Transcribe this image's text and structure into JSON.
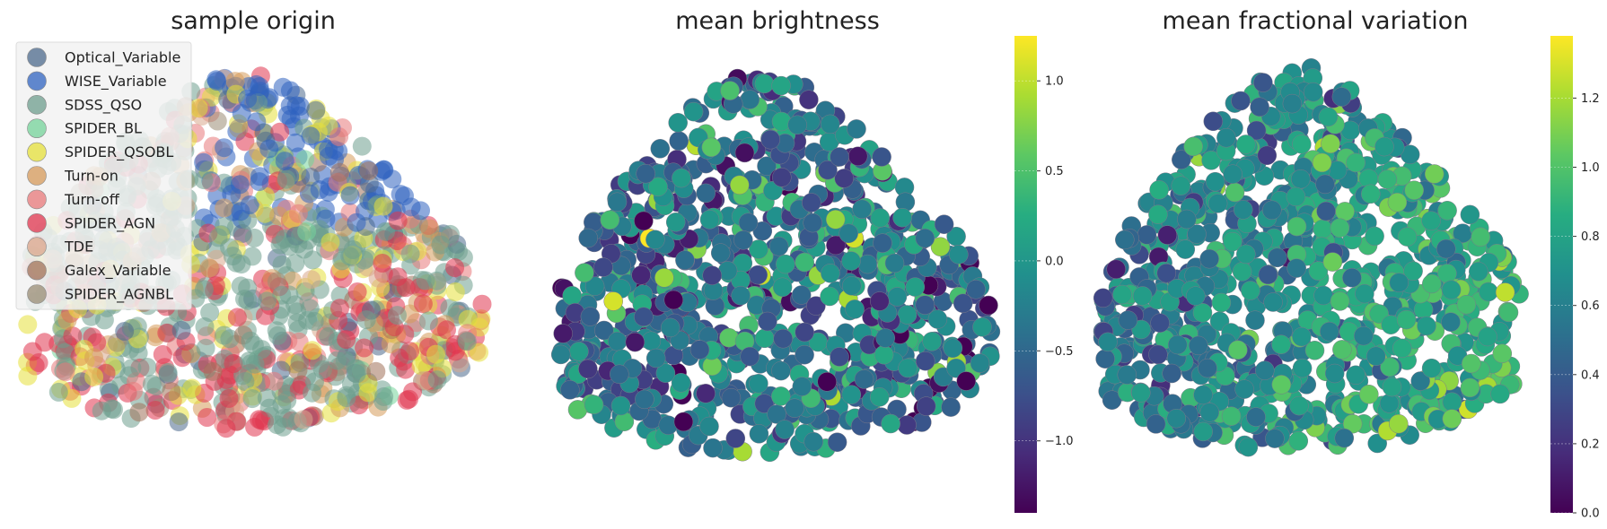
{
  "chart_data": [
    {
      "type": "scatter",
      "title": "sample origin",
      "legend_placement": "top-left",
      "grid": false,
      "axes_visible": false,
      "colors": {
        "Optical_Variable": "#4c6a8c",
        "WISE_Variable": "#2f63c0",
        "SDSS_QSO": "#6e9e8e",
        "SPIDER_BL": "#74d39a",
        "SPIDER_QSOBL": "#e6e03a",
        "Turn-on": "#d59a5a",
        "Turn-off": "#e8787a",
        "SPIDER_AGN": "#e0344e",
        "TDE": "#d9a88c",
        "Galex_Variable": "#a0715a",
        "SPIDER_AGNBL": "#9a8c74"
      },
      "series": [
        {
          "name": "Optical_Variable"
        },
        {
          "name": "WISE_Variable"
        },
        {
          "name": "SDSS_QSO"
        },
        {
          "name": "SPIDER_BL"
        },
        {
          "name": "SPIDER_QSOBL"
        },
        {
          "name": "Turn-on"
        },
        {
          "name": "Turn-off"
        },
        {
          "name": "SPIDER_AGN"
        },
        {
          "name": "TDE"
        },
        {
          "name": "Galex_Variable"
        },
        {
          "name": "SPIDER_AGNBL"
        }
      ]
    },
    {
      "type": "scatter",
      "title": "mean brightness",
      "grid": false,
      "axes_visible": false,
      "colormap": "viridis",
      "colorbar": {
        "range": [
          -1.4,
          1.25
        ],
        "ticks": [
          -1.0,
          -0.5,
          0.0,
          0.5,
          1.0
        ],
        "tick_labels": [
          "−1.0",
          "−0.5",
          "0.0",
          "0.5",
          "1.0"
        ]
      }
    },
    {
      "type": "scatter",
      "title": "mean fractional variation",
      "grid": false,
      "axes_visible": false,
      "colormap": "viridis",
      "colorbar": {
        "range": [
          0.0,
          1.38
        ],
        "ticks": [
          0.0,
          0.2,
          0.4,
          0.6,
          0.8,
          1.0,
          1.2
        ],
        "tick_labels": [
          "0.0",
          "0.2",
          "0.4",
          "0.6",
          "0.8",
          "1.0",
          "1.2"
        ]
      }
    }
  ]
}
